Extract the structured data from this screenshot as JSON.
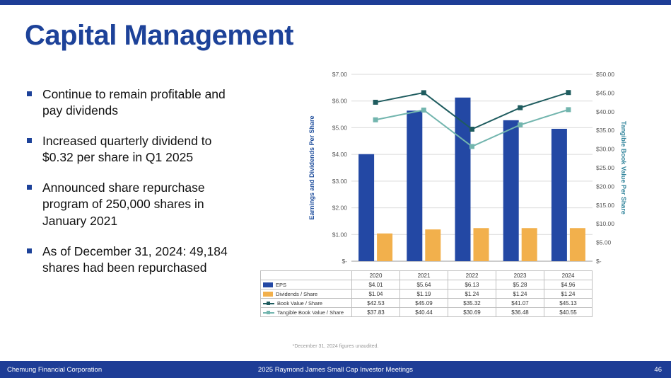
{
  "slide": {
    "title": "Capital Management",
    "bullets": [
      "Continue to remain profitable and pay dividends",
      "Increased quarterly dividend to $0.32 per share in Q1 2025",
      "Announced share repurchase program of 250,000 shares in January 2021",
      "As of December 31, 2024: 49,184 shares had been repurchased"
    ],
    "footnote": "*December 31, 2024 figures unaudited.",
    "footer": {
      "left": "Chemung Financial Corporation",
      "center": "2025 Raymond James Small Cap Investor Meetings",
      "page": "46"
    }
  },
  "colors": {
    "accent_bar": "#1E3D96",
    "footer_bg": "#1E3D96",
    "title": "#1D4299",
    "bullet_marker": "#1D4299",
    "axis_text": "#595959",
    "gridline": "#D9D9D9",
    "table_border": "#BFBFBF",
    "footnote_text": "#999999",
    "axis_title_left": "#1F4E9C",
    "axis_title_right": "#31849B"
  },
  "chart_data": {
    "type": "combo-bar-line",
    "categories": [
      "2020",
      "2021",
      "2022",
      "2023",
      "2024"
    ],
    "bar_series": [
      {
        "name": "EPS",
        "values": [
          4.01,
          5.64,
          6.13,
          5.28,
          4.96
        ],
        "color": "#2348A4",
        "axis": "left"
      },
      {
        "name": "Dividends / Share",
        "values": [
          1.04,
          1.19,
          1.24,
          1.24,
          1.24
        ],
        "color": "#F2B04C",
        "axis": "left"
      }
    ],
    "line_series": [
      {
        "name": "Book Value / Share",
        "values": [
          42.53,
          45.09,
          35.32,
          41.07,
          45.13
        ],
        "color": "#1F5C5F",
        "axis": "right"
      },
      {
        "name": "Tangible Book Value / Share",
        "values": [
          37.83,
          40.44,
          30.69,
          36.48,
          40.55
        ],
        "color": "#72B5AE",
        "axis": "right"
      }
    ],
    "left_axis": {
      "title": "Earnings and Dividends Per Share",
      "min": 0,
      "max": 7,
      "step": 1,
      "labels": [
        "$-",
        "$1.00",
        "$2.00",
        "$3.00",
        "$4.00",
        "$5.00",
        "$6.00",
        "$7.00"
      ]
    },
    "right_axis": {
      "title": "Tangible Book Value Per Share",
      "min": 0,
      "max": 50,
      "step": 5,
      "labels": [
        "$-",
        "$5.00",
        "$10.00",
        "$15.00",
        "$20.00",
        "$25.00",
        "$30.00",
        "$35.00",
        "$40.00",
        "$45.00",
        "$50.00"
      ]
    },
    "grid": true,
    "legend_position": "table-left",
    "table": {
      "rows": [
        {
          "label": "EPS",
          "swatch": "bar",
          "values": [
            "$4.01",
            "$5.64",
            "$6.13",
            "$5.28",
            "$4.96"
          ]
        },
        {
          "label": "Dividends / Share",
          "swatch": "bar",
          "values": [
            "$1.04",
            "$1.19",
            "$1.24",
            "$1.24",
            "$1.24"
          ]
        },
        {
          "label": "Book Value / Share",
          "swatch": "line",
          "values": [
            "$42.53",
            "$45.09",
            "$35.32",
            "$41.07",
            "$45.13"
          ]
        },
        {
          "label": "Tangible Book Value / Share",
          "swatch": "line",
          "values": [
            "$37.83",
            "$40.44",
            "$30.69",
            "$36.48",
            "$40.55"
          ]
        }
      ]
    }
  }
}
